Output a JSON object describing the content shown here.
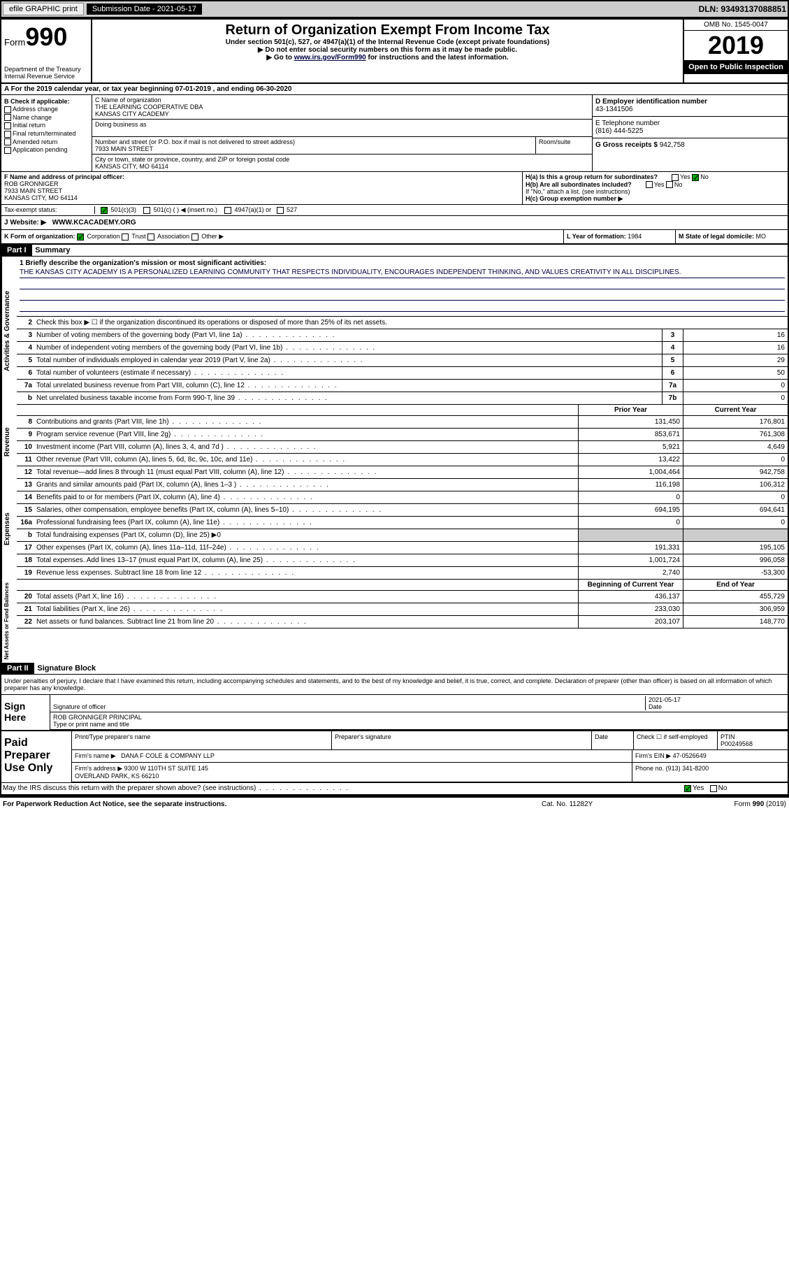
{
  "top": {
    "efile": "efile GRAPHIC print",
    "sub_label": "Submission Date - 2021-05-17",
    "dln": "DLN: 93493137088851"
  },
  "header": {
    "form_label": "Form",
    "form_num": "990",
    "dept": "Department of the Treasury\nInternal Revenue Service",
    "title": "Return of Organization Exempt From Income Tax",
    "sub1": "Under section 501(c), 527, or 4947(a)(1) of the Internal Revenue Code (except private foundations)",
    "sub2": "▶ Do not enter social security numbers on this form as it may be made public.",
    "sub3_pre": "▶ Go to ",
    "sub3_link": "www.irs.gov/Form990",
    "sub3_post": " for instructions and the latest information.",
    "omb": "OMB No. 1545-0047",
    "year": "2019",
    "inspect": "Open to Public Inspection"
  },
  "a": {
    "text": "A For the 2019 calendar year, or tax year beginning 07-01-2019    , and ending 06-30-2020"
  },
  "b": {
    "label": "B Check if applicable:",
    "items": [
      "Address change",
      "Name change",
      "Initial return",
      "Final return/terminated",
      "Amended return",
      "Application pending"
    ]
  },
  "c": {
    "name_label": "C Name of organization",
    "name": "THE LEARNING COOPERATIVE DBA\nKANSAS CITY ACADEMY",
    "dba_label": "Doing business as",
    "addr_label": "Number and street (or P.O. box if mail is not delivered to street address)",
    "room_label": "Room/suite",
    "addr": "7933 MAIN STREET",
    "city_label": "City or town, state or province, country, and ZIP or foreign postal code",
    "city": "KANSAS CITY, MO  64114"
  },
  "d": {
    "label": "D Employer identification number",
    "val": "43-1341506"
  },
  "e": {
    "label": "E Telephone number",
    "val": "(816) 444-5225"
  },
  "g": {
    "label": "G Gross receipts $",
    "val": "942,758"
  },
  "f": {
    "label": "F  Name and address of principal officer:",
    "name": "ROB GRONNIGER",
    "addr1": "7933 MAIN STREET",
    "addr2": "KANSAS CITY, MO  64114"
  },
  "h": {
    "a_label": "H(a)  Is this a group return for subordinates?",
    "a_yes": "Yes",
    "a_no": "No",
    "b_label": "H(b)  Are all subordinates included?",
    "b_note": "If \"No,\" attach a list. (see instructions)",
    "c_label": "H(c)  Group exemption number ▶"
  },
  "i": {
    "label": "Tax-exempt status:",
    "opts": [
      "501(c)(3)",
      "501(c) (  ) ◀ (insert no.)",
      "4947(a)(1) or",
      "527"
    ]
  },
  "j": {
    "label": "J   Website: ▶",
    "val": "WWW.KCACADEMY.ORG"
  },
  "k": {
    "label": "K Form of organization:",
    "opts": [
      "Corporation",
      "Trust",
      "Association",
      "Other ▶"
    ]
  },
  "l": {
    "label": "L Year of formation:",
    "val": "1984"
  },
  "m": {
    "label": "M State of legal domicile:",
    "val": "MO"
  },
  "part1": {
    "hdr": "Part I",
    "title": "Summary",
    "mission_label": "1  Briefly describe the organization's mission or most significant activities:",
    "mission": "THE KANSAS CITY ACADEMY IS A PERSONALIZED LEARNING COMMUNITY THAT RESPECTS INDIVIDUALITY, ENCOURAGES INDEPENDENT THINKING, AND VALUES CREATIVITY IN ALL DISCIPLINES.",
    "line2": "Check this box ▶ ☐ if the organization discontinued its operations or disposed of more than 25% of its net assets.",
    "governance": [
      {
        "n": "3",
        "d": "Number of voting members of the governing body (Part VI, line 1a)",
        "b": "3",
        "v": "16"
      },
      {
        "n": "4",
        "d": "Number of independent voting members of the governing body (Part VI, line 1b)",
        "b": "4",
        "v": "16"
      },
      {
        "n": "5",
        "d": "Total number of individuals employed in calendar year 2019 (Part V, line 2a)",
        "b": "5",
        "v": "29"
      },
      {
        "n": "6",
        "d": "Total number of volunteers (estimate if necessary)",
        "b": "6",
        "v": "50"
      },
      {
        "n": "7a",
        "d": "Total unrelated business revenue from Part VIII, column (C), line 12",
        "b": "7a",
        "v": "0"
      },
      {
        "n": "b",
        "d": "Net unrelated business taxable income from Form 990-T, line 39",
        "b": "7b",
        "v": "0"
      }
    ],
    "col_prior": "Prior Year",
    "col_current": "Current Year",
    "revenue": [
      {
        "n": "8",
        "d": "Contributions and grants (Part VIII, line 1h)",
        "p": "131,450",
        "c": "176,801"
      },
      {
        "n": "9",
        "d": "Program service revenue (Part VIII, line 2g)",
        "p": "853,671",
        "c": "761,308"
      },
      {
        "n": "10",
        "d": "Investment income (Part VIII, column (A), lines 3, 4, and 7d )",
        "p": "5,921",
        "c": "4,649"
      },
      {
        "n": "11",
        "d": "Other revenue (Part VIII, column (A), lines 5, 6d, 8c, 9c, 10c, and 11e)",
        "p": "13,422",
        "c": "0"
      },
      {
        "n": "12",
        "d": "Total revenue—add lines 8 through 11 (must equal Part VIII, column (A), line 12)",
        "p": "1,004,464",
        "c": "942,758"
      }
    ],
    "expenses": [
      {
        "n": "13",
        "d": "Grants and similar amounts paid (Part IX, column (A), lines 1–3 )",
        "p": "116,198",
        "c": "106,312"
      },
      {
        "n": "14",
        "d": "Benefits paid to or for members (Part IX, column (A), line 4)",
        "p": "0",
        "c": "0"
      },
      {
        "n": "15",
        "d": "Salaries, other compensation, employee benefits (Part IX, column (A), lines 5–10)",
        "p": "694,195",
        "c": "694,641"
      },
      {
        "n": "16a",
        "d": "Professional fundraising fees (Part IX, column (A), line 11e)",
        "p": "0",
        "c": "0"
      },
      {
        "n": "b",
        "d": "Total fundraising expenses (Part IX, column (D), line 25) ▶0",
        "p": "",
        "c": "",
        "grey": true
      },
      {
        "n": "17",
        "d": "Other expenses (Part IX, column (A), lines 11a–11d, 11f–24e)",
        "p": "191,331",
        "c": "195,105"
      },
      {
        "n": "18",
        "d": "Total expenses. Add lines 13–17 (must equal Part IX, column (A), line 25)",
        "p": "1,001,724",
        "c": "996,058"
      },
      {
        "n": "19",
        "d": "Revenue less expenses. Subtract line 18 from line 12",
        "p": "2,740",
        "c": "-53,300"
      }
    ],
    "col_begin": "Beginning of Current Year",
    "col_end": "End of Year",
    "netassets": [
      {
        "n": "20",
        "d": "Total assets (Part X, line 16)",
        "p": "436,137",
        "c": "455,729"
      },
      {
        "n": "21",
        "d": "Total liabilities (Part X, line 26)",
        "p": "233,030",
        "c": "306,959"
      },
      {
        "n": "22",
        "d": "Net assets or fund balances. Subtract line 21 from line 20",
        "p": "203,107",
        "c": "148,770"
      }
    ],
    "vlabels": {
      "gov": "Activities & Governance",
      "rev": "Revenue",
      "exp": "Expenses",
      "net": "Net Assets or Fund Balances"
    }
  },
  "part2": {
    "hdr": "Part II",
    "title": "Signature Block",
    "decl": "Under penalties of perjury, I declare that I have examined this return, including accompanying schedules and statements, and to the best of my knowledge and belief, it is true, correct, and complete. Declaration of preparer (other than officer) is based on all information of which preparer has any knowledge.",
    "sign_here": "Sign Here",
    "sig_officer": "Signature of officer",
    "sig_date": "2021-05-17",
    "date_lbl": "Date",
    "officer_name": "ROB GRONNIGER  PRINCIPAL",
    "type_lbl": "Type or print name and title",
    "paid": "Paid Preparer Use Only",
    "prep_name_lbl": "Print/Type preparer's name",
    "prep_sig_lbl": "Preparer's signature",
    "prep_date_lbl": "Date",
    "self_emp": "Check ☐ if self-employed",
    "ptin_lbl": "PTIN",
    "ptin": "P00249568",
    "firm_name_lbl": "Firm's name    ▶",
    "firm_name": "DANA F COLE & COMPANY LLP",
    "firm_ein_lbl": "Firm's EIN ▶",
    "firm_ein": "47-0526649",
    "firm_addr_lbl": "Firm's address ▶",
    "firm_addr": "9300 W 110TH ST SUITE 145\nOVERLAND PARK, KS  66210",
    "phone_lbl": "Phone no.",
    "phone": "(913) 341-8200",
    "discuss": "May the IRS discuss this return with the preparer shown above? (see instructions)",
    "yes": "Yes",
    "no": "No"
  },
  "footer": {
    "l": "For Paperwork Reduction Act Notice, see the separate instructions.",
    "c": "Cat. No. 11282Y",
    "r": "Form 990 (2019)"
  }
}
